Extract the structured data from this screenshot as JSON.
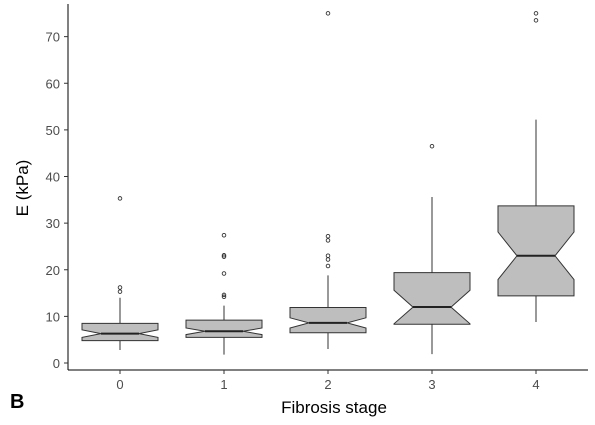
{
  "panel_label": "B",
  "chart_data": {
    "type": "boxplot",
    "notched": true,
    "xlabel": "Fibrosis stage",
    "ylabel": "E (kPa)",
    "ylim": [
      -1.5,
      77
    ],
    "yticks": [
      0,
      10,
      20,
      30,
      40,
      50,
      60,
      70
    ],
    "categories": [
      "0",
      "1",
      "2",
      "3",
      "4"
    ],
    "grid": false,
    "box_fill": "#bebebe",
    "box_stroke": "#333333",
    "boxes": [
      {
        "category": "0",
        "whisker_low": 2.8,
        "q1": 4.8,
        "median": 6.3,
        "q3": 8.5,
        "whisker_high": 14.0,
        "notch_low": 5.5,
        "notch_high": 7.1,
        "outliers": [
          15.3,
          16.2,
          35.3
        ]
      },
      {
        "category": "1",
        "whisker_low": 1.8,
        "q1": 5.5,
        "median": 6.8,
        "q3": 9.2,
        "whisker_high": 12.3,
        "notch_low": 6.1,
        "notch_high": 7.5,
        "outliers": [
          14.2,
          14.6,
          19.2,
          22.8,
          23.1,
          27.4
        ]
      },
      {
        "category": "2",
        "whisker_low": 3.0,
        "q1": 6.5,
        "median": 8.6,
        "q3": 11.9,
        "whisker_high": 18.8,
        "notch_low": 7.5,
        "notch_high": 9.7,
        "outliers": [
          20.8,
          22.2,
          23.0,
          26.3,
          27.2,
          75.0
        ]
      },
      {
        "category": "3",
        "whisker_low": 1.9,
        "q1": 8.3,
        "median": 12.0,
        "q3": 19.4,
        "whisker_high": 35.6,
        "notch_low": 8.4,
        "notch_high": 15.6,
        "outliers": [
          46.5
        ]
      },
      {
        "category": "4",
        "whisker_low": 8.8,
        "q1": 14.4,
        "median": 23.0,
        "q3": 33.7,
        "whisker_high": 52.2,
        "notch_low": 17.9,
        "notch_high": 28.1,
        "outliers": [
          73.5,
          75.0
        ]
      }
    ]
  }
}
